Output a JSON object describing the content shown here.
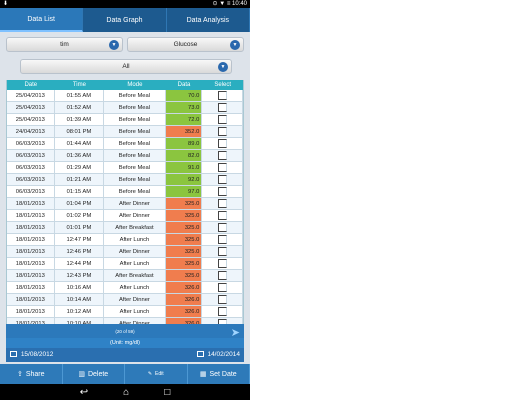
{
  "status": {
    "left": "⬇",
    "right": "⊙ ▼ ≡ 10:40"
  },
  "tabs": [
    "Data List",
    "Data Graph",
    "Data Analysis"
  ],
  "filters": {
    "user": "tim",
    "type": "Glucose",
    "mode": "All"
  },
  "columns": [
    "Date",
    "Time",
    "Mode",
    "Data",
    "Select"
  ],
  "rows": [
    [
      "25/04/2013",
      "01:55 AM",
      "Before Meal",
      "70.0"
    ],
    [
      "25/04/2013",
      "01:52 AM",
      "Before Meal",
      "73.0"
    ],
    [
      "25/04/2013",
      "01:39 AM",
      "Before Meal",
      "72.0"
    ],
    [
      "24/04/2013",
      "08:01 PM",
      "Before Meal",
      "352.0"
    ],
    [
      "06/03/2013",
      "01:44 AM",
      "Before Meal",
      "89.0"
    ],
    [
      "06/03/2013",
      "01:36 AM",
      "Before Meal",
      "82.0"
    ],
    [
      "06/03/2013",
      "01:29 AM",
      "Before Meal",
      "91.0"
    ],
    [
      "06/03/2013",
      "01:21 AM",
      "Before Meal",
      "92.0"
    ],
    [
      "06/03/2013",
      "01:15 AM",
      "Before Meal",
      "97.0"
    ],
    [
      "18/01/2013",
      "01:04 PM",
      "After Dinner",
      "325.0"
    ],
    [
      "18/01/2013",
      "01:02 PM",
      "After Dinner",
      "325.0"
    ],
    [
      "18/01/2013",
      "01:01 PM",
      "After Breakfast",
      "325.0"
    ],
    [
      "18/01/2013",
      "12:47 PM",
      "After Lunch",
      "325.0"
    ],
    [
      "18/01/2013",
      "12:46 PM",
      "After Dinner",
      "325.0"
    ],
    [
      "18/01/2013",
      "12:44 PM",
      "After Lunch",
      "325.0"
    ],
    [
      "18/01/2013",
      "12:43 PM",
      "After Breakfast",
      "325.0"
    ],
    [
      "18/01/2013",
      "10:16 AM",
      "After Lunch",
      "326.0"
    ],
    [
      "18/01/2013",
      "10:14 AM",
      "After Dinner",
      "326.0"
    ],
    [
      "18/01/2013",
      "10:12 AM",
      "After Lunch",
      "326.0"
    ],
    [
      "18/01/2013",
      "10:10 AM",
      "After Dinner",
      "326.0"
    ]
  ],
  "data_colors": {
    "green": "#8bc53f",
    "red": "#f07d4e"
  },
  "pager": {
    "count": "(20 of 59)"
  },
  "unit": "(Unit: mg/dl)",
  "date_range": {
    "start": "15/08/2012",
    "end": "14/02/2014"
  },
  "actions": {
    "share": "Share",
    "delete": "Delete",
    "edit": "Edit",
    "set_date": "Set Date"
  },
  "navbar": {
    "back": "↩",
    "home": "⌂",
    "recent": "□"
  }
}
